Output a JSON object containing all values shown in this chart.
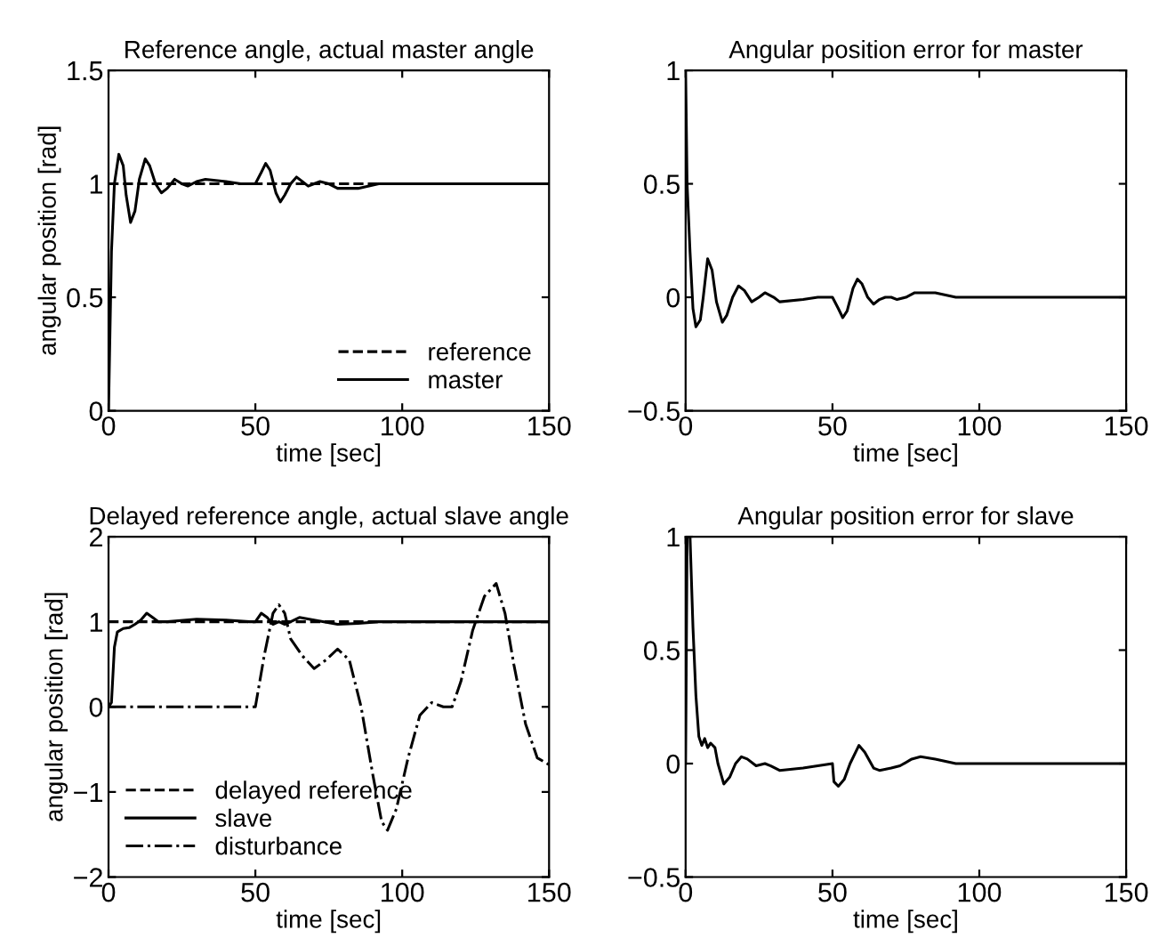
{
  "chart_data": [
    {
      "type": "line",
      "title": "Reference angle, actual master angle",
      "xlabel": "time [sec]",
      "ylabel": "angular position [rad]",
      "xlim": [
        0,
        150
      ],
      "xticks": [
        0,
        50,
        100,
        150
      ],
      "ylim": [
        0,
        1.5
      ],
      "yticks": [
        0,
        0.5,
        1,
        1.5
      ],
      "grid": false,
      "legend": "bottom right",
      "series": [
        {
          "name": "reference",
          "color": "#000000",
          "line_style": "dashed",
          "x": [
            0,
            150
          ],
          "values": [
            1,
            1
          ]
        },
        {
          "name": "master",
          "color": "#000000",
          "line_style": "solid",
          "x": [
            0,
            1,
            2,
            3.5,
            5,
            6,
            7.5,
            9,
            10.5,
            12.5,
            14,
            16,
            18,
            20,
            22.5,
            25,
            27,
            30,
            33,
            40,
            45,
            50,
            52,
            53.5,
            55,
            57,
            58.5,
            60,
            62,
            64,
            66,
            68,
            70,
            72,
            75,
            78,
            85,
            92,
            150
          ],
          "values": [
            0,
            0.7,
            1.0,
            1.13,
            1.08,
            0.95,
            0.83,
            0.88,
            1.02,
            1.11,
            1.08,
            1.0,
            0.96,
            0.98,
            1.02,
            1.0,
            0.99,
            1.01,
            1.02,
            1.01,
            1.0,
            1.0,
            1.05,
            1.09,
            1.06,
            0.96,
            0.92,
            0.95,
            1.0,
            1.03,
            1.01,
            0.99,
            1.0,
            1.01,
            1.0,
            0.98,
            0.98,
            1.0,
            1.0
          ]
        }
      ]
    },
    {
      "type": "line",
      "title": "Angular position error for master",
      "xlabel": "time [sec]",
      "xlim": [
        0,
        150
      ],
      "xticks": [
        0,
        50,
        100,
        150
      ],
      "ylim": [
        -0.5,
        1
      ],
      "yticks": [
        {
          "value": -0.5,
          "label": "−0.5"
        },
        0,
        0.5,
        1
      ],
      "grid": false,
      "series": [
        {
          "color": "#000000",
          "line_style": "solid",
          "x": [
            0,
            0.5,
            1.5,
            2.5,
            3.5,
            5,
            6,
            7.5,
            9,
            10.5,
            12.5,
            14,
            16,
            18,
            20,
            22.5,
            25,
            27,
            30,
            32,
            40,
            45,
            50,
            52,
            53.5,
            55,
            57,
            58.5,
            60,
            62,
            64,
            66,
            68,
            70,
            72,
            75,
            78,
            85,
            92,
            150
          ],
          "values": [
            1,
            0.5,
            0.2,
            -0.05,
            -0.13,
            -0.1,
            0.0,
            0.17,
            0.12,
            -0.02,
            -0.11,
            -0.08,
            0.0,
            0.05,
            0.03,
            -0.02,
            0.0,
            0.02,
            0.0,
            -0.02,
            -0.01,
            0.0,
            0.0,
            -0.05,
            -0.09,
            -0.06,
            0.04,
            0.08,
            0.06,
            0.0,
            -0.03,
            -0.01,
            0.0,
            0.0,
            -0.01,
            0.0,
            0.02,
            0.02,
            0.0,
            0.0
          ]
        }
      ]
    },
    {
      "type": "line",
      "title": "Delayed reference angle, actual slave angle",
      "xlabel": "time [sec]",
      "ylabel": "angular position [rad]",
      "xlim": [
        0,
        150
      ],
      "xticks": [
        0,
        50,
        100,
        150
      ],
      "ylim": [
        -2,
        2
      ],
      "yticks": [
        {
          "value": -2,
          "label": "−2"
        },
        {
          "value": -1,
          "label": "−1"
        },
        0,
        1,
        2
      ],
      "grid": false,
      "legend": "bottom left",
      "series": [
        {
          "name": "delayed reference",
          "color": "#000000",
          "line_style": "dashed",
          "x": [
            0,
            150
          ],
          "values": [
            1,
            1
          ]
        },
        {
          "name": "slave",
          "color": "#000000",
          "line_style": "solid",
          "x": [
            0,
            1,
            2,
            3,
            5,
            7,
            9,
            11,
            13,
            15,
            17,
            20,
            30,
            40,
            48,
            50,
            52,
            54,
            56,
            58,
            60,
            62,
            65,
            70,
            78,
            85,
            92,
            150
          ],
          "values": [
            0,
            0.05,
            0.7,
            0.88,
            0.92,
            0.93,
            0.97,
            1.02,
            1.1,
            1.05,
            1.0,
            1.0,
            1.03,
            1.02,
            1.0,
            1.0,
            1.1,
            1.05,
            0.97,
            1.0,
            0.97,
            1.0,
            1.05,
            1.02,
            0.97,
            0.98,
            1.0,
            1.0
          ]
        },
        {
          "name": "disturbance",
          "color": "#000000",
          "line_style": "dashdot",
          "x": [
            0,
            50,
            53,
            56,
            58,
            60,
            62,
            66,
            70,
            74,
            78,
            82,
            86,
            90,
            93,
            95,
            98,
            102,
            106,
            110,
            114,
            117,
            120,
            124,
            128,
            132,
            135,
            138,
            142,
            146,
            150
          ],
          "values": [
            0,
            0,
            0.6,
            1.1,
            1.2,
            1.1,
            0.8,
            0.6,
            0.45,
            0.55,
            0.68,
            0.55,
            0.0,
            -0.8,
            -1.35,
            -1.45,
            -1.2,
            -0.6,
            -0.1,
            0.05,
            0.0,
            0.0,
            0.3,
            0.9,
            1.3,
            1.45,
            1.1,
            0.5,
            -0.2,
            -0.6,
            -0.68
          ]
        }
      ]
    },
    {
      "type": "line",
      "title": "Angular position error for slave",
      "xlabel": "time [sec]",
      "xlim": [
        0,
        150
      ],
      "xticks": [
        0,
        50,
        100,
        150
      ],
      "ylim": [
        -0.5,
        1
      ],
      "yticks": [
        {
          "value": -0.5,
          "label": "−0.5"
        },
        0,
        0.5,
        1
      ],
      "grid": false,
      "series": [
        {
          "color": "#000000",
          "line_style": "solid",
          "x": [
            0,
            0.5,
            1.5,
            2.5,
            3.5,
            4.5,
            5.5,
            6.5,
            7.5,
            8.5,
            10,
            11,
            13,
            15,
            17,
            19,
            21,
            24,
            27,
            29,
            32,
            40,
            50,
            50.5,
            52,
            54,
            56,
            59,
            61,
            64,
            66,
            70,
            73,
            77,
            80,
            85,
            92,
            150
          ],
          "values": [
            0,
            1,
            1,
            0.6,
            0.3,
            0.12,
            0.08,
            0.11,
            0.07,
            0.09,
            0.07,
            0.0,
            -0.09,
            -0.06,
            0.0,
            0.03,
            0.02,
            -0.01,
            0.0,
            -0.01,
            -0.03,
            -0.02,
            0.0,
            -0.08,
            -0.1,
            -0.07,
            0.0,
            0.08,
            0.05,
            -0.02,
            -0.03,
            -0.02,
            -0.01,
            0.02,
            0.03,
            0.02,
            0.0,
            0.0
          ]
        }
      ]
    }
  ]
}
